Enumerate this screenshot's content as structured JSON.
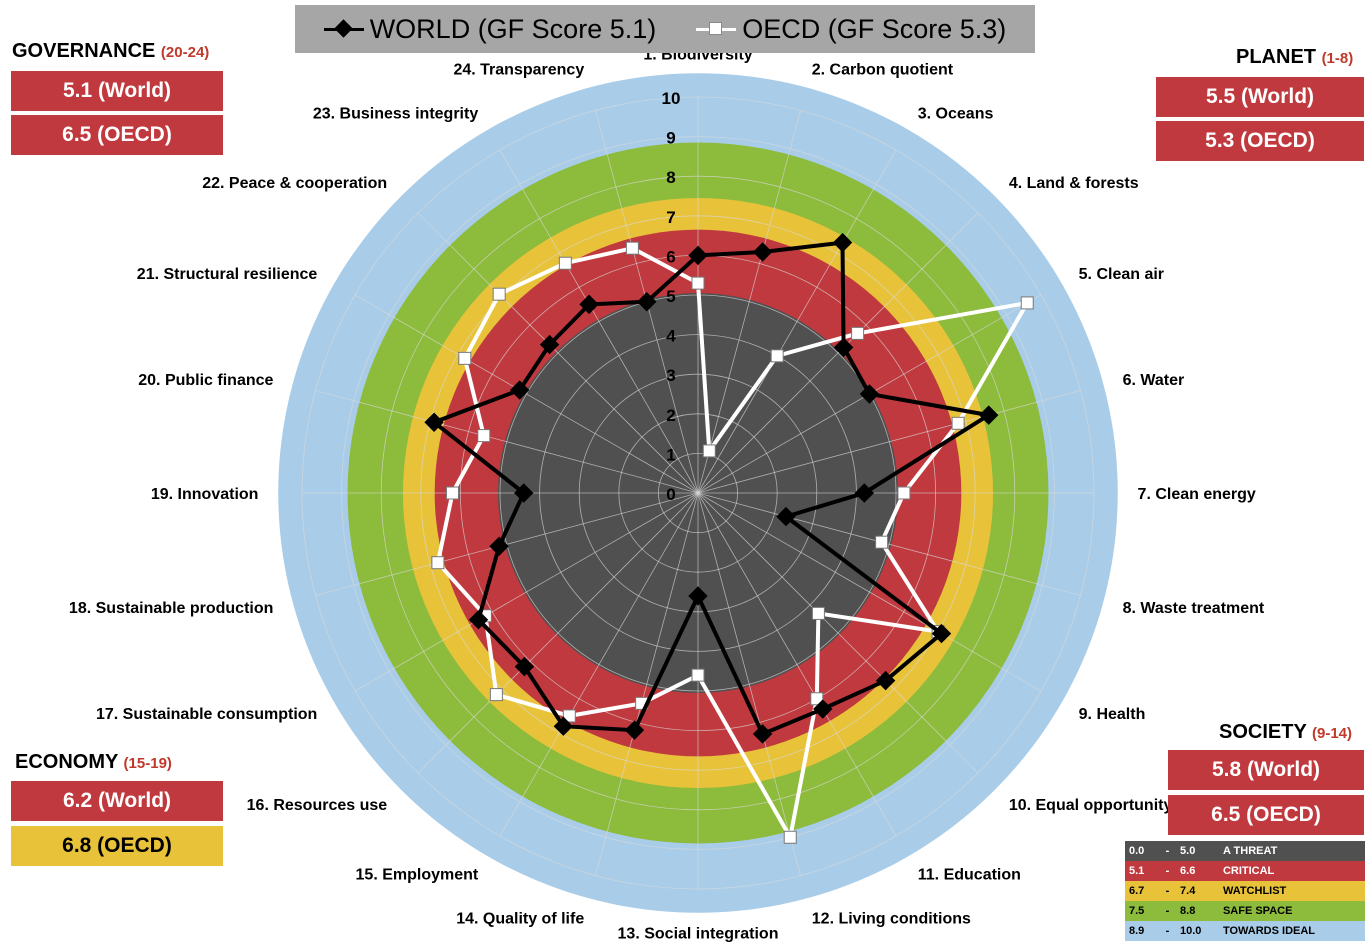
{
  "legend": {
    "world_label": "WORLD (GF Score 5.1)",
    "oecd_label": "OECD (GF Score 5.3)"
  },
  "panels": {
    "governance": {
      "title": "GOVERNANCE",
      "range": "(20-24)",
      "world": "5.1 (World)",
      "oecd": "6.5 (OECD)",
      "world_color": "#c0393e",
      "oecd_color": "#c0393e"
    },
    "planet": {
      "title": "PLANET",
      "range": "(1-8)",
      "world": "5.5 (World)",
      "oecd": "5.3 (OECD)",
      "world_color": "#c0393e",
      "oecd_color": "#c0393e"
    },
    "economy": {
      "title": "ECONOMY",
      "range": "(15-19)",
      "world": "6.2 (World)",
      "oecd": "6.8 (OECD)",
      "world_color": "#c0393e",
      "oecd_color": "#e8c33a"
    },
    "society": {
      "title": "SOCIETY",
      "range": "(9-14)",
      "world": "5.8 (World)",
      "oecd": "6.5 (OECD)",
      "world_color": "#c0393e",
      "oecd_color": "#c0393e"
    }
  },
  "scale": [
    {
      "from": "0.0",
      "dash": "-",
      "to": "5.0",
      "label": "A THREAT",
      "color": "#505050"
    },
    {
      "from": "5.1",
      "dash": "-",
      "to": "6.6",
      "label": "CRITICAL",
      "color": "#c0393e"
    },
    {
      "from": "6.7",
      "dash": "-",
      "to": "7.4",
      "label": "WATCHLIST",
      "color": "#e8c33a"
    },
    {
      "from": "7.5",
      "dash": "-",
      "to": "8.8",
      "label": "SAFE  SPACE",
      "color": "#8dbb3c"
    },
    {
      "from": "8.9",
      "dash": "-",
      "to": "10.0",
      "label": "TOWARDS IDEAL",
      "color": "#a9cde9"
    }
  ],
  "chart_data": {
    "type": "radar",
    "categories": [
      "1. Biodiversity",
      "2. Carbon quotient",
      "3. Oceans",
      "4. Land & forests",
      "5. Clean air",
      "6. Water",
      "7. Clean energy",
      "8. Waste treatment",
      "9. Health",
      "10. Equal opportunity",
      "11. Education",
      "12. Living conditions",
      "13. Social integration",
      "14. Quality of life",
      "15. Employment",
      "16. Resources use",
      "17. Sustainable consumption",
      "18. Sustainable production",
      "19. Innovation",
      "20. Public finance",
      "21. Structural resilience",
      "22. Peace & cooperation",
      "23. Business integrity",
      "24. Transparency"
    ],
    "rlim": [
      0,
      10
    ],
    "ticks": [
      "0",
      "1",
      "2",
      "3",
      "4",
      "5",
      "6",
      "7",
      "8",
      "9",
      "10"
    ],
    "bands": [
      {
        "from": 0,
        "to": 5.05,
        "color": "#505050"
      },
      {
        "from": 5.05,
        "to": 6.65,
        "color": "#c0393e"
      },
      {
        "from": 6.65,
        "to": 7.45,
        "color": "#e8c33a"
      },
      {
        "from": 7.45,
        "to": 8.85,
        "color": "#8dbb3c"
      },
      {
        "from": 8.85,
        "to": 10.6,
        "color": "#a9cde9"
      }
    ],
    "series": [
      {
        "name": "WORLD (GF Score 5.1)",
        "color": "#000000",
        "marker": "diamond",
        "values": [
          6.0,
          6.3,
          7.3,
          5.2,
          5.0,
          7.6,
          4.2,
          2.3,
          7.1,
          6.7,
          6.3,
          6.3,
          2.6,
          6.2,
          6.8,
          6.2,
          6.4,
          5.2,
          4.4,
          6.9,
          5.2,
          5.3,
          5.5,
          5.0
        ]
      },
      {
        "name": "OECD (GF Score 5.3)",
        "color": "#ffffff",
        "marker": "square",
        "values": [
          5.3,
          1.1,
          4.0,
          5.7,
          9.6,
          6.8,
          5.2,
          4.8,
          7.0,
          4.3,
          6.0,
          9.0,
          4.6,
          5.5,
          6.5,
          7.2,
          6.2,
          6.8,
          6.2,
          5.6,
          6.8,
          7.1,
          6.7,
          6.4
        ]
      }
    ]
  }
}
